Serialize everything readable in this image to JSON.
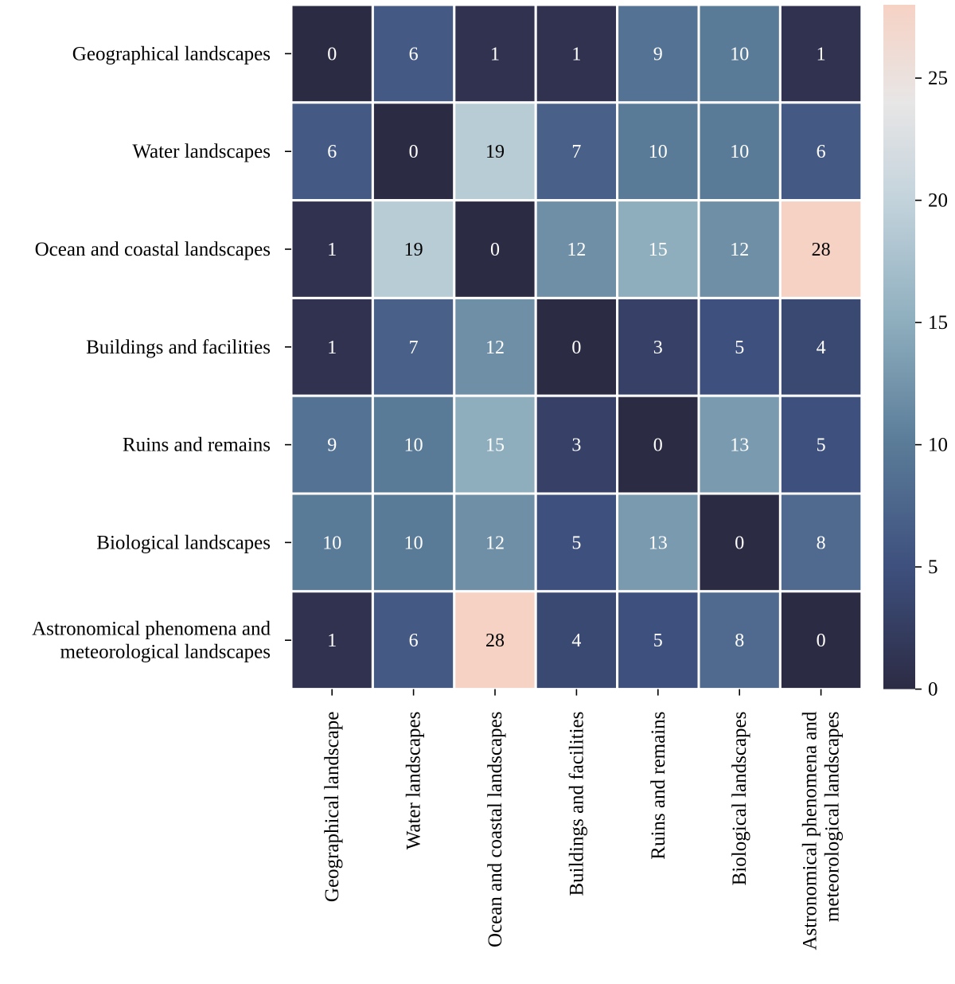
{
  "chart_data": {
    "type": "heatmap",
    "title": "",
    "xlabel": "",
    "ylabel": "",
    "rows": [
      "Geographical landscapes",
      "Water landscapes",
      "Ocean and coastal landscapes",
      "Buildings and facilities",
      "Ruins and remains",
      "Biological landscapes",
      "Astronomical phenomena and\nmeteorological landscapes"
    ],
    "columns": [
      "Geographical landscape",
      "Water landscapes",
      "Ocean and coastal landscapes",
      "Buildings and facilities",
      "Ruins and remains",
      "Biological landscapes",
      "Astronomical phenomena and\nmeteorological landscapes"
    ],
    "values": [
      [
        0,
        6,
        1,
        1,
        9,
        10,
        1
      ],
      [
        6,
        0,
        19,
        7,
        10,
        10,
        6
      ],
      [
        1,
        19,
        0,
        12,
        15,
        12,
        28
      ],
      [
        1,
        7,
        12,
        0,
        3,
        5,
        4
      ],
      [
        9,
        10,
        15,
        3,
        0,
        13,
        5
      ],
      [
        10,
        10,
        12,
        5,
        13,
        0,
        8
      ],
      [
        1,
        6,
        28,
        4,
        5,
        8,
        0
      ]
    ],
    "colorbar": {
      "min": 0,
      "max": 28,
      "ticks": [
        0,
        5,
        10,
        15,
        20,
        25
      ],
      "colormap": [
        {
          "value": 0,
          "color": "#2c2b44"
        },
        {
          "value": 5,
          "color": "#3e507e"
        },
        {
          "value": 10,
          "color": "#5a7b98"
        },
        {
          "value": 15,
          "color": "#8eaebe"
        },
        {
          "value": 20,
          "color": "#c3d3dc"
        },
        {
          "value": 24,
          "color": "#e8e6e6"
        },
        {
          "value": 28,
          "color": "#f6d2c4"
        }
      ]
    },
    "grid": false,
    "legend": "right"
  }
}
